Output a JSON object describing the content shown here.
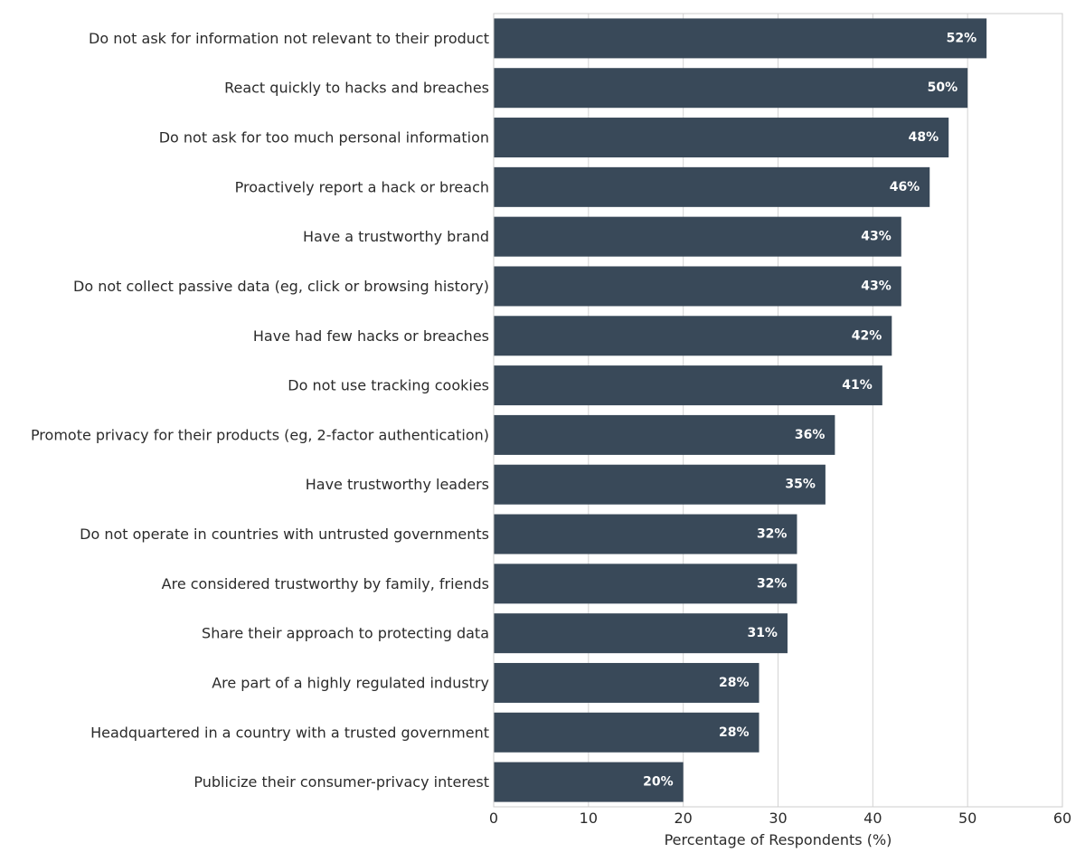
{
  "chart_data": {
    "type": "bar",
    "orientation": "horizontal",
    "categories": [
      "Do not ask for information not relevant to their product",
      "React quickly to hacks and breaches",
      "Do not ask for too much personal information",
      "Proactively report a hack or breach",
      "Have a trustworthy brand",
      "Do not collect passive data (eg, click or browsing history)",
      "Have had few hacks or breaches",
      "Do not use tracking cookies",
      "Promote privacy for their products (eg, 2-factor authentication)",
      "Have trustworthy leaders",
      "Do not operate in countries with untrusted governments",
      "Are considered trustworthy by family, friends",
      "Share their approach to protecting data",
      "Are part of a highly regulated industry",
      "Headquartered in a country with a trusted government",
      "Publicize their consumer-privacy interest"
    ],
    "values": [
      52,
      50,
      48,
      46,
      43,
      43,
      42,
      41,
      36,
      35,
      32,
      32,
      31,
      28,
      28,
      20
    ],
    "value_labels": [
      "52%",
      "50%",
      "48%",
      "46%",
      "43%",
      "43%",
      "42%",
      "41%",
      "36%",
      "35%",
      "32%",
      "32%",
      "31%",
      "28%",
      "28%",
      "20%"
    ],
    "title": "",
    "xlabel": "Percentage of Respondents (%)",
    "ylabel": "",
    "xlim": [
      0,
      60
    ],
    "xticks": [
      "0",
      "10",
      "20",
      "30",
      "40",
      "50",
      "60"
    ],
    "grid": "vertical",
    "bar_color": "#394959",
    "grid_color": "#d4d4d4"
  }
}
